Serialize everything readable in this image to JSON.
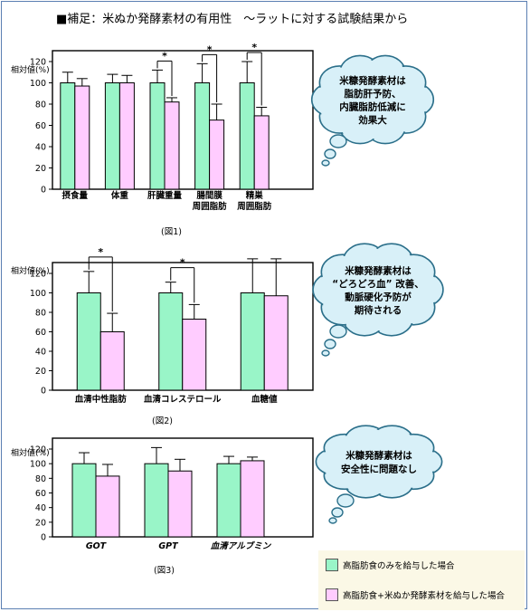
{
  "page": {
    "title": "■補足：米ぬか発酵素材の有用性　～ラットに対する試験結果から"
  },
  "colors": {
    "high_fat_only": "#99f5c8",
    "high_fat_plus_rice_bran": "#ffccff",
    "bubble_fill": "#d8f0f8",
    "bubble_stroke": "#2b6f8a",
    "frame": "#5b7fb2"
  },
  "legend": {
    "items": [
      {
        "label": "高脂肪食のみを給与した場合",
        "color": "#99f5c8"
      },
      {
        "label": "高脂肪食+米ぬか発酵素材を給与した場合",
        "color": "#ffccff"
      }
    ]
  },
  "chart_data": [
    {
      "type": "bar",
      "title": "",
      "ylabel": "相対値(%)",
      "caption": "(図1)",
      "ylim": [
        0,
        120
      ],
      "yticks": [
        0,
        20,
        40,
        60,
        80,
        100,
        120
      ],
      "categories": [
        "摂食量",
        "体重",
        "肝臓重量",
        "腸間膜\n周囲脂肪",
        "精巣\n周囲脂肪"
      ],
      "series": [
        {
          "name": "高脂肪食のみを給与した場合",
          "values": [
            100,
            100,
            100,
            100,
            100
          ],
          "errors": [
            10,
            8,
            12,
            18,
            20
          ]
        },
        {
          "name": "高脂肪食+米ぬか発酵素材を給与した場合",
          "values": [
            97,
            100,
            82,
            65,
            69
          ],
          "errors": [
            7,
            7,
            4,
            15,
            8
          ]
        }
      ],
      "significance": [
        {
          "category_index": 2,
          "label": "*"
        },
        {
          "category_index": 3,
          "label": "*"
        },
        {
          "category_index": 4,
          "label": "*"
        }
      ],
      "note": "米糠発酵素材は\n脂肪肝予防、\n内臓脂肪低減に\n効果大"
    },
    {
      "type": "bar",
      "title": "",
      "ylabel": "相対値(%)",
      "caption": "(図2)",
      "ylim": [
        0,
        120
      ],
      "yticks": [
        0,
        20,
        40,
        60,
        80,
        100,
        120
      ],
      "categories": [
        "血清中性脂肪",
        "血清コレステロール",
        "血糖値"
      ],
      "series": [
        {
          "name": "高脂肪食のみを給与した場合",
          "values": [
            100,
            100,
            100
          ],
          "errors": [
            22,
            11,
            35
          ]
        },
        {
          "name": "高脂肪食+米ぬか発酵素材を給与した場合",
          "values": [
            60,
            73,
            97
          ],
          "errors": [
            19,
            15,
            38
          ]
        }
      ],
      "significance": [
        {
          "category_index": 0,
          "label": "*"
        },
        {
          "category_index": 1,
          "label": "*"
        }
      ],
      "note": "米糠発酵素材は\n“どろどろ血” 改善、\n動脈硬化予防が\n期待される"
    },
    {
      "type": "bar",
      "title": "",
      "ylabel": "相対値(%)",
      "caption": "(図3)",
      "ylim": [
        0,
        120
      ],
      "yticks": [
        0,
        20,
        40,
        60,
        80,
        100,
        120
      ],
      "categories": [
        "GOT",
        "GPT",
        "血清アルブミン"
      ],
      "series": [
        {
          "name": "高脂肪食のみを給与した場合",
          "values": [
            100,
            100,
            100
          ],
          "errors": [
            15,
            22,
            10
          ]
        },
        {
          "name": "高脂肪食+米ぬか発酵素材を給与した場合",
          "values": [
            83,
            90,
            104
          ],
          "errors": [
            16,
            16,
            5
          ]
        }
      ],
      "significance": [],
      "note": "米糠発酵素材は\n安全性に問題なし"
    }
  ]
}
